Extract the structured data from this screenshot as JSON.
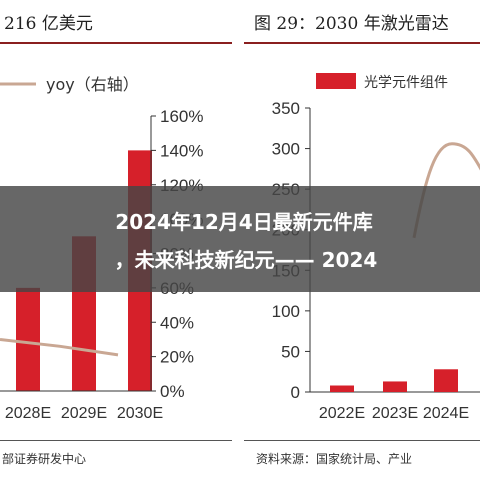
{
  "left": {
    "title": "216 亿美元",
    "legend_label": "yoy（右轴）",
    "source": "部证券研发中心"
  },
  "right": {
    "title": "图 29：2030 年激光雷达",
    "legend_label": "光学元件组件",
    "source": "资料来源：国家统计局、产业"
  },
  "banner": {
    "line1": "2024年12月4日最新元件库",
    "line2": "，未来科技新纪元—— 2024"
  },
  "colors": {
    "bar": "#d6202a",
    "line": "#c9a793",
    "banner_bg": "#464646",
    "title_rule": "#8a1f1f"
  },
  "chart_data": [
    {
      "type": "bar",
      "title": "216 亿美元",
      "categories": [
        "2028E",
        "2029E",
        "2030E"
      ],
      "series": [
        {
          "type": "bar",
          "values": [
            null,
            null,
            null
          ]
        },
        {
          "name": "yoy（右轴）",
          "type": "line",
          "axis": "right",
          "values": [
            30,
            26,
            21
          ]
        }
      ],
      "y2_ticks": [
        "0%",
        "20%",
        "40%",
        "60%",
        "80%",
        "100%",
        "120%",
        "140%",
        "160%"
      ],
      "y2lim": [
        0,
        160
      ],
      "bar_top_right_axis": [
        60,
        90,
        140
      ],
      "grid": false,
      "legend": "top-left"
    },
    {
      "type": "bar",
      "title": "图 29：2030 年激光雷达",
      "categories": [
        "2022E",
        "2023E",
        "2024E"
      ],
      "series": [
        {
          "name": "光学元件组件",
          "type": "bar",
          "values": [
            8,
            13,
            28
          ]
        },
        {
          "type": "line",
          "values": [
            null,
            null,
            null
          ]
        }
      ],
      "y_ticks": [
        "0",
        "50",
        "100",
        "150",
        "200",
        "250",
        "300",
        "350"
      ],
      "ylim": [
        0,
        350
      ],
      "grid": false,
      "legend": "top"
    }
  ]
}
